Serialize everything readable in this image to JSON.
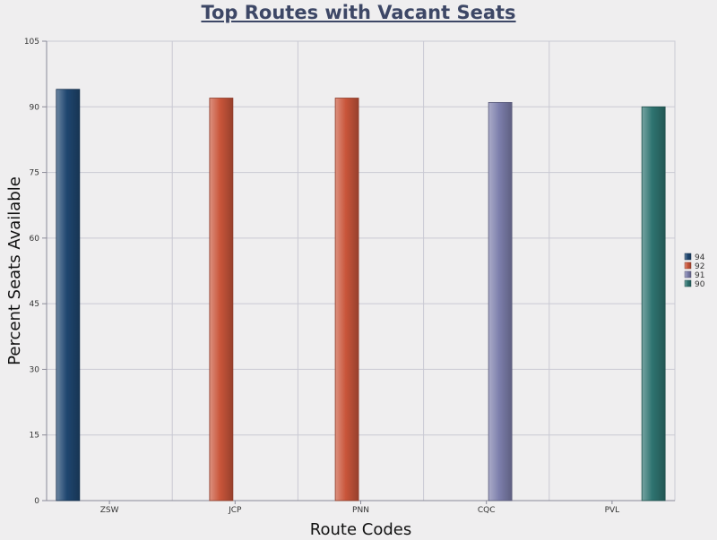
{
  "chart_data": {
    "type": "bar",
    "title": "Top Routes with Vacant Seats",
    "xlabel": "Route Codes",
    "ylabel": "Percent Seats Available",
    "categories": [
      "ZSW",
      "JCP",
      "PNN",
      "CQC",
      "PVL"
    ],
    "ylim": [
      0,
      105
    ],
    "yticks": [
      "0",
      "15",
      "30",
      "45",
      "60",
      "75",
      "90",
      "105"
    ],
    "grid": true,
    "legend_position": "right",
    "series": [
      {
        "name": "94",
        "color": "#1f4670",
        "values": [
          94,
          null,
          null,
          null,
          null
        ]
      },
      {
        "name": "92",
        "color": "#c9553a",
        "values": [
          null,
          92,
          92,
          null,
          null
        ]
      },
      {
        "name": "91",
        "color": "#7d7fac",
        "values": [
          null,
          null,
          null,
          91,
          null
        ]
      },
      {
        "name": "90",
        "color": "#2e7370",
        "values": [
          null,
          null,
          null,
          null,
          90
        ]
      }
    ]
  }
}
